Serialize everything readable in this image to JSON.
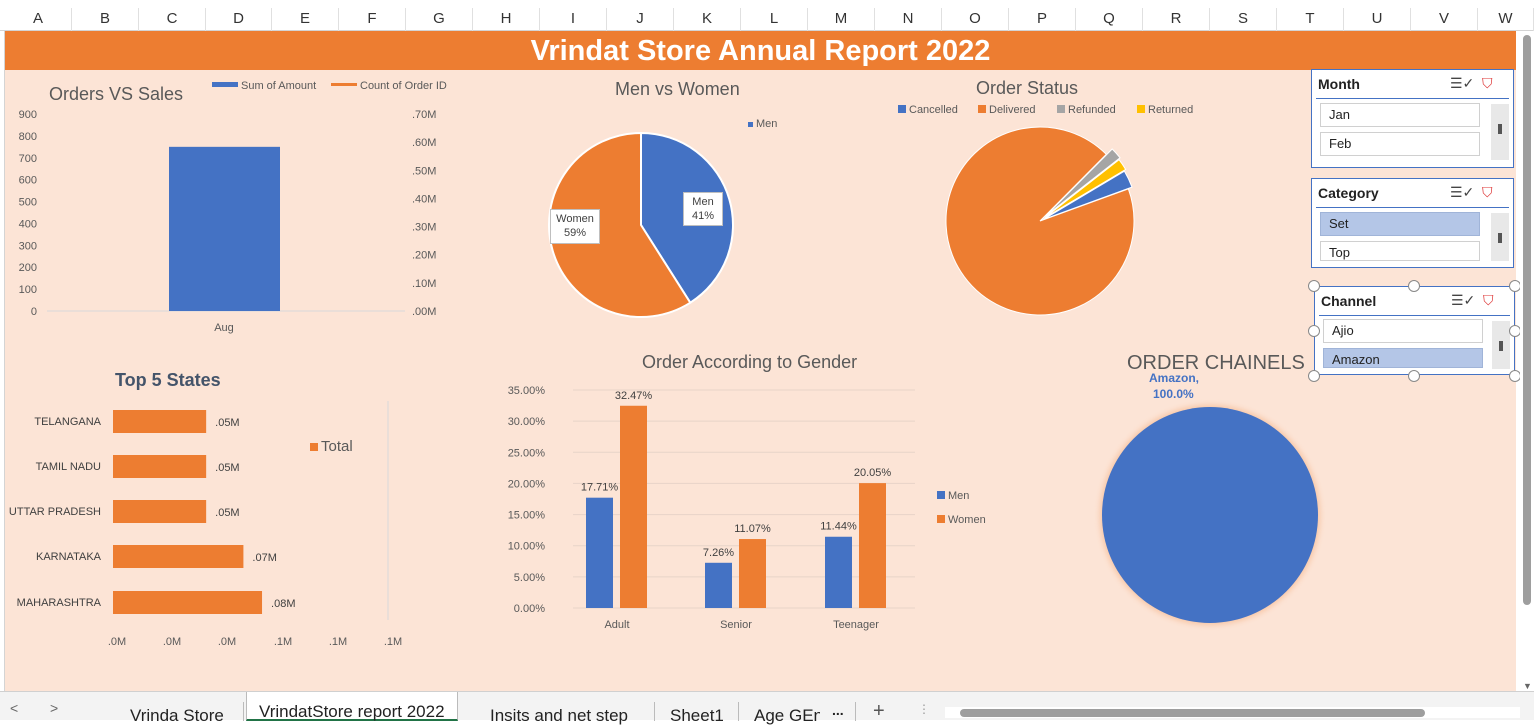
{
  "columns": [
    "A",
    "B",
    "C",
    "D",
    "E",
    "F",
    "G",
    "H",
    "I",
    "J",
    "K",
    "L",
    "M",
    "N",
    "O",
    "P",
    "Q",
    "R",
    "S",
    "T",
    "U",
    "V",
    "W"
  ],
  "banner_title": "Vrindat Store Annual Report 2022",
  "orders_vs_sales": {
    "title": "Orders VS Sales",
    "legend": [
      "Sum of Amount",
      "Count of Order ID"
    ],
    "left_ticks": [
      "900",
      "800",
      "700",
      "600",
      "500",
      "400",
      "300",
      "200",
      "100",
      "0"
    ],
    "right_ticks": [
      ".70M",
      ".60M",
      ".50M",
      ".40M",
      ".30M",
      ".20M",
      ".10M",
      ".00M"
    ],
    "category": "Aug",
    "colors": {
      "amount": "#4472c4",
      "count": "#ed7d31"
    }
  },
  "men_vs_women": {
    "title": "Men vs Women",
    "legend": "Men",
    "men_label": "Men",
    "men_pct": "41%",
    "women_label": "Women",
    "women_pct": "59%"
  },
  "order_status": {
    "title": "Order Status",
    "legend": [
      "Cancelled",
      "Delivered",
      "Refunded",
      "Returned"
    ]
  },
  "top_states": {
    "title": "Top 5 States",
    "legend": "Total",
    "states": [
      "TELANGANA",
      "TAMIL NADU",
      "UTTAR PRADESH",
      "KARNATAKA",
      "MAHARASHTRA"
    ],
    "values": [
      ".05M",
      ".05M",
      ".05M",
      ".07M",
      ".08M"
    ],
    "x_ticks": [
      ".0M",
      ".0M",
      ".0M",
      ".1M",
      ".1M",
      ".1M"
    ]
  },
  "gender_orders": {
    "title": "Order According to Gender",
    "y_ticks": [
      "35.00%",
      "30.00%",
      "25.00%",
      "20.00%",
      "15.00%",
      "10.00%",
      "5.00%",
      "0.00%"
    ],
    "categories": [
      "Adult",
      "Senior",
      "Teenager"
    ],
    "legend": [
      "Men",
      "Women"
    ]
  },
  "order_channels": {
    "title": "ORDER CHAINELS",
    "label_name": "Amazon,",
    "label_pct": "100.0%"
  },
  "slicers": {
    "month": {
      "title": "Month",
      "items": [
        "Jan",
        "Feb"
      ]
    },
    "category": {
      "title": "Category",
      "items": [
        "Set",
        "Top"
      ]
    },
    "channel": {
      "title": "Channel",
      "items": [
        "Ajio",
        "Amazon"
      ]
    }
  },
  "sheet_tabs": [
    "Vrinda Store",
    "VrindatStore report 2022",
    "Insits and net  step",
    "Sheet1",
    "Age GEn",
    "..."
  ],
  "chart_data": [
    {
      "type": "bar",
      "title": "Orders VS Sales",
      "categories": [
        "Aug"
      ],
      "series": [
        {
          "name": "Sum of Amount",
          "values": [
            750
          ]
        },
        {
          "name": "Count of Order ID",
          "values": [
            0
          ]
        }
      ],
      "ylim": [
        0,
        900
      ],
      "y2lim": [
        0,
        0.7
      ]
    },
    {
      "type": "pie",
      "title": "Men vs Women",
      "categories": [
        "Men",
        "Women"
      ],
      "values": [
        41,
        59
      ]
    },
    {
      "type": "pie",
      "title": "Order Status",
      "categories": [
        "Cancelled",
        "Delivered",
        "Refunded",
        "Returned"
      ],
      "values": [
        3,
        93,
        2,
        2
      ]
    },
    {
      "type": "bar",
      "title": "Top 5 States",
      "categories": [
        "TELANGANA",
        "TAMIL NADU",
        "UTTAR PRADESH",
        "KARNATAKA",
        "MAHARASHTRA"
      ],
      "series": [
        {
          "name": "Total",
          "values": [
            0.05,
            0.05,
            0.05,
            0.07,
            0.08
          ]
        }
      ],
      "xlim": [
        0,
        0.1
      ]
    },
    {
      "type": "bar",
      "title": "Order According to Gender",
      "categories": [
        "Adult",
        "Senior",
        "Teenager"
      ],
      "series": [
        {
          "name": "Men",
          "values": [
            17.71,
            7.26,
            11.44
          ]
        },
        {
          "name": "Women",
          "values": [
            32.47,
            11.07,
            20.05
          ]
        }
      ],
      "data_labels": [
        [
          "17.71%",
          "7.26%",
          "11.44%"
        ],
        [
          "32.47%",
          "11.07%",
          "20.05%"
        ]
      ],
      "ylim": [
        0,
        35
      ]
    },
    {
      "type": "pie",
      "title": "ORDER CHAINELS",
      "categories": [
        "Amazon"
      ],
      "values": [
        100
      ]
    }
  ]
}
